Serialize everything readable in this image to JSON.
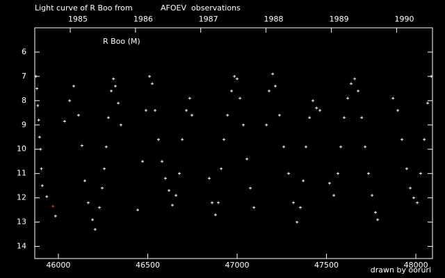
{
  "chart_data": {
    "type": "scatter",
    "title": [
      "Light curve of R Boo from",
      "AFOEV",
      "observations"
    ],
    "title_colors": [
      "#ffffff",
      "#ffff00",
      "#ffffff"
    ],
    "annotation": "R Boo (M)",
    "credit": "drawn by ooruri",
    "credit_color": "#00ffff",
    "xlim": [
      45868,
      48093
    ],
    "xticks": [
      46000,
      46500,
      47000,
      47500,
      48000
    ],
    "x2ticks": [
      {
        "value": 46066.5,
        "label": "1985"
      },
      {
        "value": 46431.5,
        "label": "1986"
      },
      {
        "value": 46796.5,
        "label": "1987"
      },
      {
        "value": 47161.5,
        "label": "1988"
      },
      {
        "value": 47527.5,
        "label": "1989"
      },
      {
        "value": 47892.5,
        "label": "1990"
      }
    ],
    "ylim": [
      14.5,
      5.0
    ],
    "yticks": [
      6,
      7,
      8,
      9,
      10,
      11,
      12,
      13,
      14
    ],
    "series": [
      {
        "color": "#ffffff",
        "x": [
          45875,
          45880,
          45885,
          45890,
          45895,
          45900,
          45905,
          45910,
          45935,
          45984,
          46035,
          46063,
          46086,
          46113,
          46132,
          46148,
          46167,
          46191,
          46206,
          46230,
          46245,
          46257,
          46268,
          46280,
          46296,
          46308,
          46319,
          46335,
          46350,
          46444,
          46471,
          46490,
          46510,
          46525,
          46541,
          46560,
          46580,
          46599,
          46619,
          46638,
          46658,
          46677,
          46693,
          46716,
          46735,
          46747,
          46844,
          46860,
          46879,
          46895,
          46911,
          46926,
          46946,
          46969,
          46985,
          47000,
          47016,
          47035,
          47055,
          47074,
          47094,
          47164,
          47179,
          47199,
          47214,
          47237,
          47261,
          47288,
          47315,
          47335,
          47354,
          47370,
          47385,
          47405,
          47424,
          47444,
          47463,
          47517,
          47541,
          47564,
          47580,
          47599,
          47619,
          47638,
          47658,
          47677,
          47697,
          47716,
          47735,
          47755,
          47774,
          47786,
          47872,
          47899,
          47922,
          47949,
          47969,
          47988,
          48008,
          48027,
          48047,
          48066,
          48086
        ],
        "values": [
          7.0,
          7.5,
          8.2,
          8.8,
          9.5,
          10.0,
          10.8,
          11.5,
          11.95,
          12.75,
          8.85,
          8.0,
          7.4,
          8.6,
          9.85,
          11.3,
          12.2,
          12.9,
          13.3,
          12.4,
          11.6,
          10.8,
          9.9,
          8.7,
          7.6,
          7.1,
          7.4,
          8.1,
          9.0,
          12.5,
          10.5,
          8.4,
          7.0,
          7.3,
          8.4,
          9.6,
          10.5,
          11.2,
          11.7,
          12.3,
          11.9,
          11.0,
          9.6,
          8.4,
          7.9,
          8.6,
          11.2,
          12.2,
          12.7,
          12.2,
          10.8,
          9.6,
          8.6,
          7.6,
          7.0,
          7.1,
          7.9,
          9.0,
          10.4,
          11.6,
          12.4,
          9.0,
          7.6,
          6.9,
          7.4,
          8.6,
          9.9,
          11.0,
          12.2,
          13.0,
          12.4,
          11.3,
          9.9,
          8.7,
          8.0,
          8.3,
          8.4,
          11.4,
          11.9,
          11.0,
          9.9,
          8.7,
          7.9,
          7.3,
          7.1,
          7.6,
          8.7,
          9.9,
          11.0,
          11.9,
          12.6,
          12.9,
          7.9,
          8.4,
          9.6,
          10.8,
          11.6,
          12.0,
          12.2,
          11.0,
          9.6,
          8.1,
          7.0
        ]
      },
      {
        "color": "#ff3030",
        "x": [
          45970
        ],
        "values": [
          12.35
        ]
      }
    ]
  }
}
